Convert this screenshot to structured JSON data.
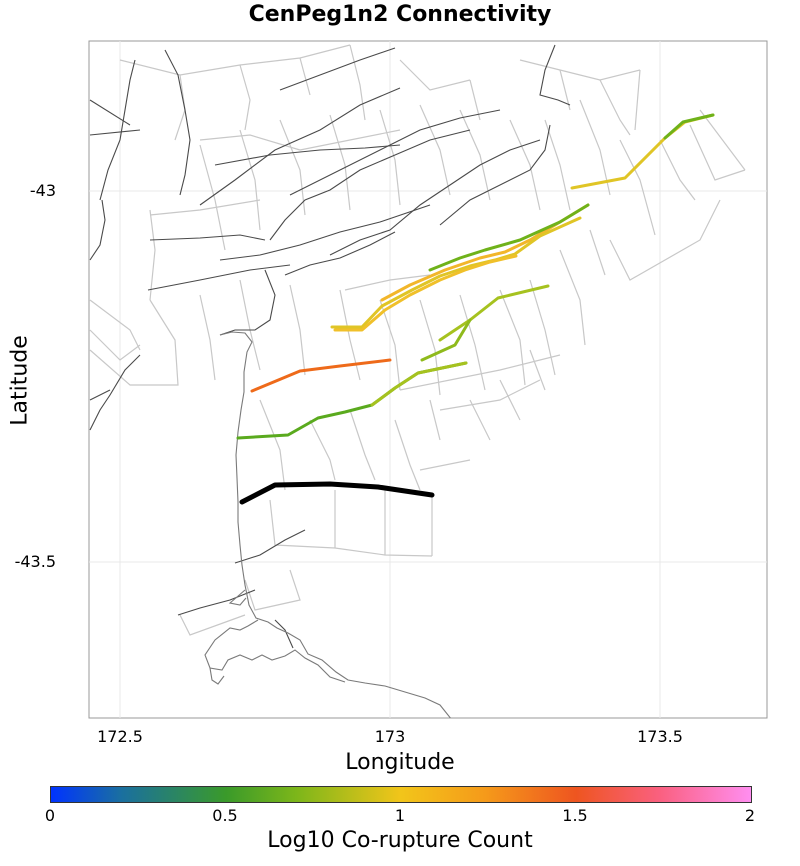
{
  "title": "CenPeg1n2 Connectivity",
  "axes": {
    "xlabel": "Longitude",
    "ylabel": "Latitude",
    "xticks": [
      "172.5",
      "173",
      "173.5"
    ],
    "yticks": [
      "-43",
      "-43.5"
    ]
  },
  "colorbar": {
    "label": "Log10 Co-rupture Count",
    "ticks": [
      "0",
      "0.5",
      "1",
      "1.5",
      "2"
    ]
  },
  "colors": {
    "source": "#000000",
    "high": "#ee6a1a",
    "mid_high": "#f2b62a",
    "mid": "#e0c526",
    "mid_low": "#a6c21f",
    "low": "#5aaa1e",
    "background_fault": "#c8c8c8",
    "dark_fault": "#444444",
    "coast": "#777777"
  }
}
